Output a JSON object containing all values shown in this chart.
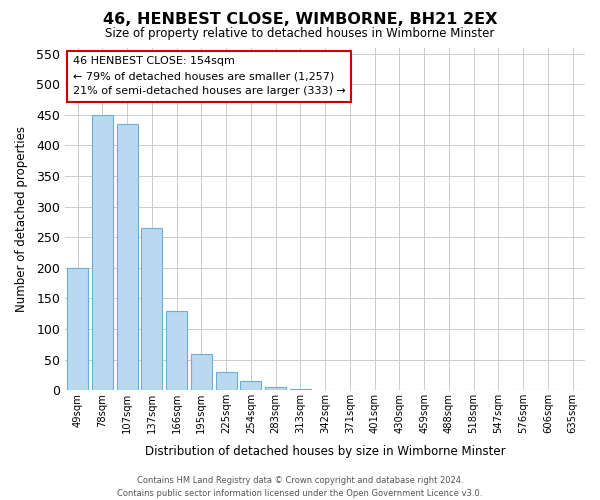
{
  "title": "46, HENBEST CLOSE, WIMBORNE, BH21 2EX",
  "subtitle": "Size of property relative to detached houses in Wimborne Minster",
  "bar_values": [
    200,
    450,
    435,
    265,
    130,
    60,
    30,
    15,
    5,
    2,
    0,
    0,
    0,
    0,
    0,
    0,
    0,
    0,
    0,
    0,
    0
  ],
  "bar_labels": [
    "49sqm",
    "78sqm",
    "107sqm",
    "137sqm",
    "166sqm",
    "195sqm",
    "225sqm",
    "254sqm",
    "283sqm",
    "313sqm",
    "342sqm",
    "371sqm",
    "401sqm",
    "430sqm",
    "459sqm",
    "488sqm",
    "518sqm",
    "547sqm",
    "576sqm",
    "606sqm",
    "635sqm"
  ],
  "bar_color": "#b8d9f0",
  "bar_edge_color": "#6aafd4",
  "xlabel": "Distribution of detached houses by size in Wimborne Minster",
  "ylabel": "Number of detached properties",
  "ylim": [
    0,
    560
  ],
  "yticks": [
    0,
    50,
    100,
    150,
    200,
    250,
    300,
    350,
    400,
    450,
    500,
    550
  ],
  "annotation_title": "46 HENBEST CLOSE: 154sqm",
  "annotation_line1": "← 79% of detached houses are smaller (1,257)",
  "annotation_line2": "21% of semi-detached houses are larger (333) →",
  "annotation_box_color": "#ffffff",
  "annotation_box_edge": "#cc0000",
  "footer_line1": "Contains HM Land Registry data © Crown copyright and database right 2024.",
  "footer_line2": "Contains public sector information licensed under the Open Government Licence v3.0."
}
